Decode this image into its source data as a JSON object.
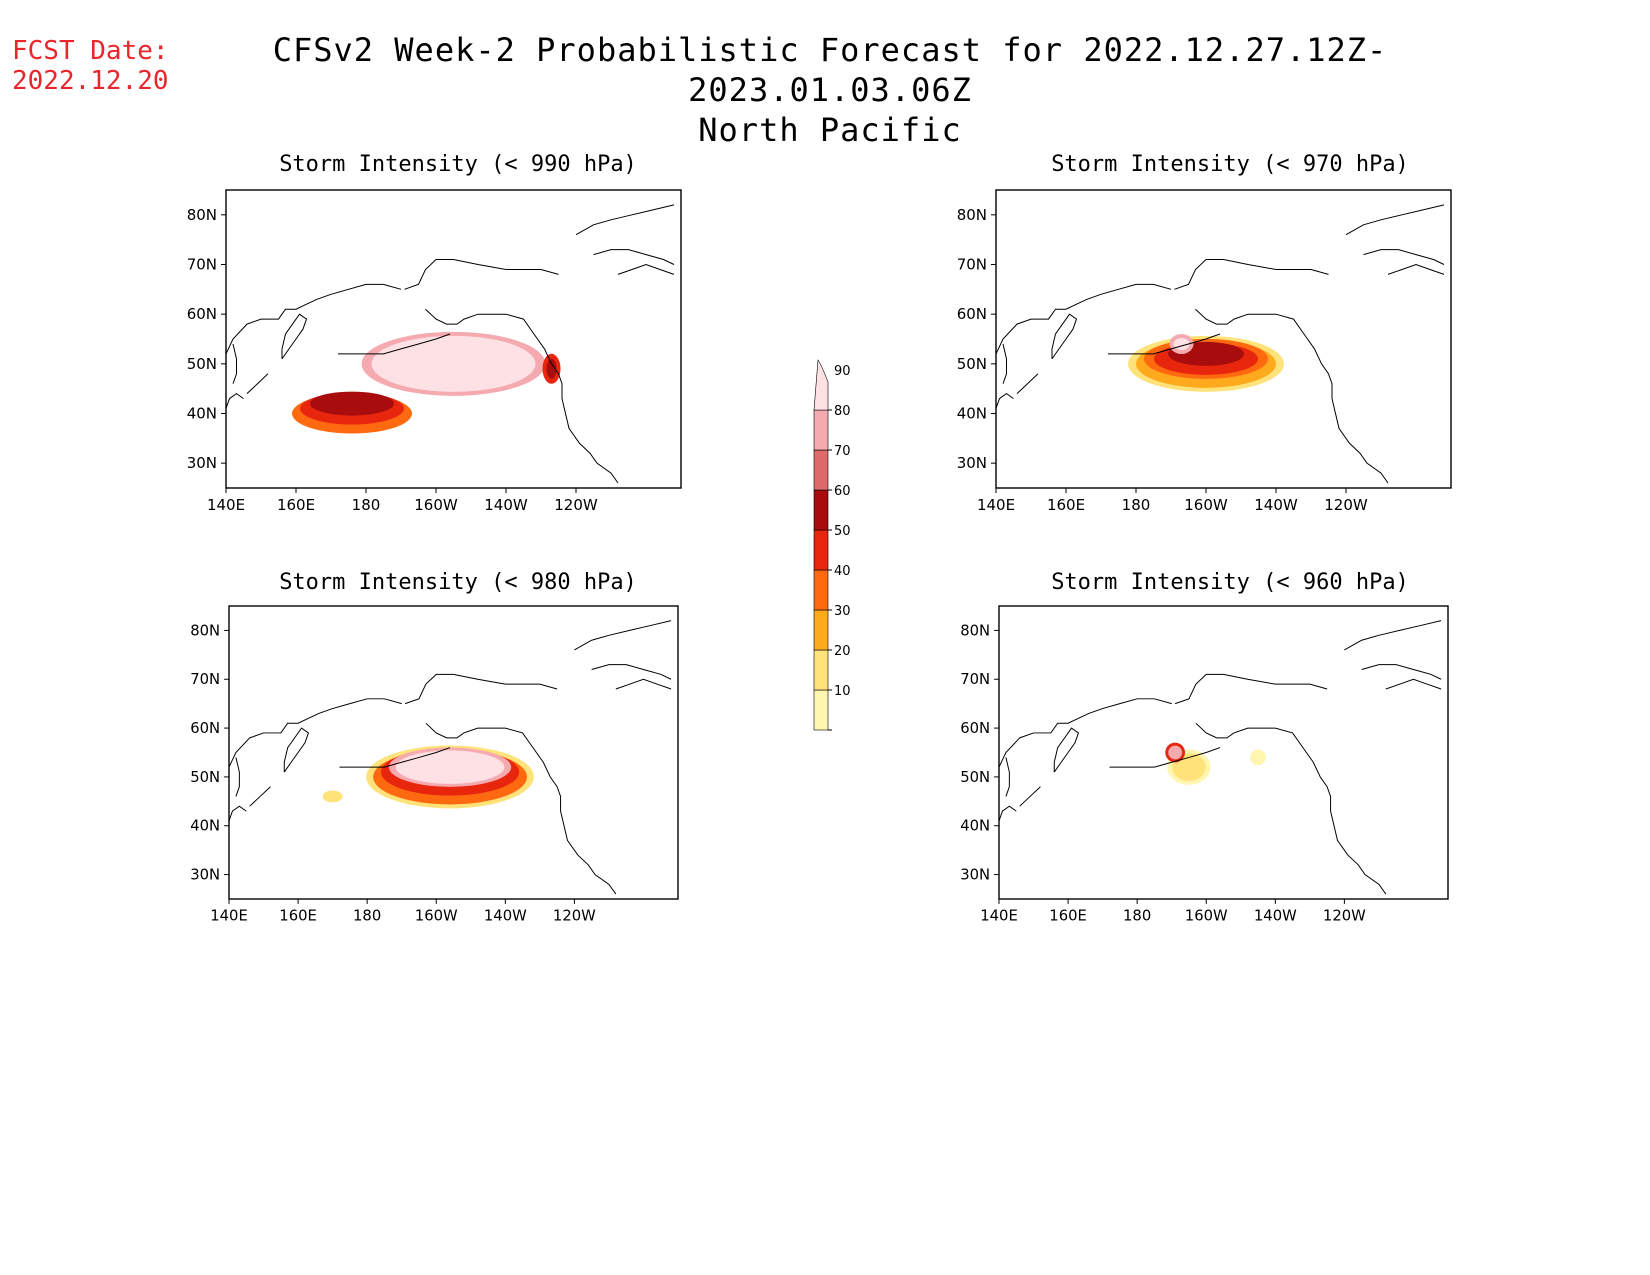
{
  "header": {
    "fcst_label": "FCST Date:",
    "fcst_date": "2022.12.20",
    "title": "CFSv2 Week-2 Probabilistic Forecast for 2022.12.27.12Z-2023.01.03.06Z",
    "subtitle": "North Pacific"
  },
  "axes": {
    "lon_ticks": [
      "140E",
      "160E",
      "180",
      "160W",
      "140W",
      "120W"
    ],
    "lat_ticks": [
      "80N",
      "70N",
      "60N",
      "50N",
      "40N",
      "30N"
    ]
  },
  "colorbar": {
    "levels": [
      "10",
      "20",
      "30",
      "40",
      "50",
      "60",
      "70",
      "80",
      "90"
    ],
    "colors": [
      "#fff6b0",
      "#ffe27a",
      "#ffaa1c",
      "#ff6a10",
      "#e8260e",
      "#a80c0c",
      "#de6a6a",
      "#f5aab0",
      "#fde1e4"
    ]
  },
  "panels": [
    {
      "id": "990",
      "title": "Storm Intensity (< 990 hPa)"
    },
    {
      "id": "970",
      "title": "Storm Intensity (< 970 hPa)"
    },
    {
      "id": "980",
      "title": "Storm Intensity (< 980 hPa)"
    },
    {
      "id": "960",
      "title": "Storm Intensity (< 960 hPa)"
    }
  ]
}
